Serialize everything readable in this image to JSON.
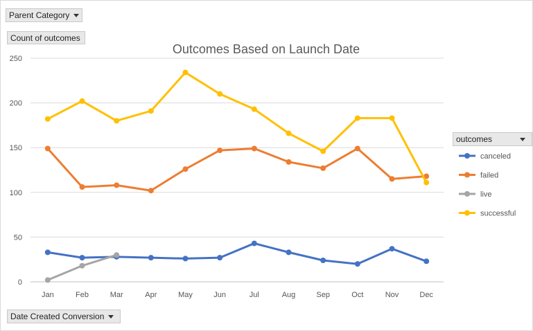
{
  "pivot": {
    "parent_category": "Parent Category",
    "count_label": "Count of outcomes",
    "date_field": "Date Created Conversion",
    "legend_field": "outcomes"
  },
  "chart_data": {
    "type": "line",
    "title": "Outcomes Based on Launch Date",
    "xlabel": "",
    "ylabel": "",
    "categories": [
      "Jan",
      "Feb",
      "Mar",
      "Apr",
      "May",
      "Jun",
      "Jul",
      "Aug",
      "Sep",
      "Oct",
      "Nov",
      "Dec"
    ],
    "ylim": [
      0,
      250
    ],
    "yticks": [
      0,
      50,
      100,
      150,
      200,
      250
    ],
    "grid": true,
    "legend_position": "right",
    "series": [
      {
        "name": "canceled",
        "color": "#4472c4",
        "values": [
          33,
          27,
          28,
          27,
          26,
          27,
          43,
          33,
          24,
          20,
          37,
          23
        ]
      },
      {
        "name": "failed",
        "color": "#ed7d31",
        "values": [
          149,
          106,
          108,
          102,
          126,
          147,
          149,
          134,
          127,
          149,
          115,
          118
        ]
      },
      {
        "name": "live",
        "color": "#a5a5a5",
        "values": [
          2,
          18,
          30,
          null,
          null,
          null,
          null,
          null,
          null,
          null,
          null,
          null
        ]
      },
      {
        "name": "successful",
        "color": "#ffc000",
        "values": [
          182,
          202,
          180,
          191,
          234,
          210,
          193,
          166,
          146,
          183,
          183,
          111
        ]
      }
    ]
  }
}
